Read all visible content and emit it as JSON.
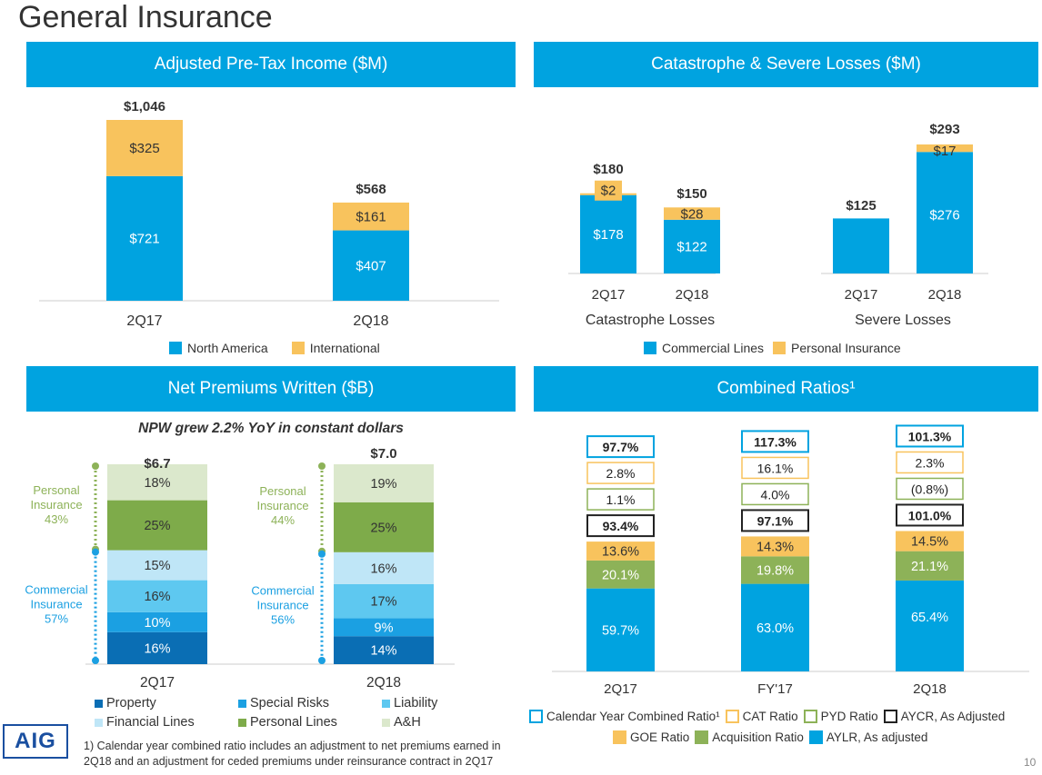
{
  "page": {
    "title": "General Insurance",
    "page_number": "10",
    "logo_text": "AIG",
    "footnote": "1) Calendar year combined ratio includes an adjustment to net premiums earned in 2Q18 and an adjustment for ceded premiums under reinsurance contract in 2Q17"
  },
  "colors": {
    "banner": "#00a3e0",
    "blue": "#00a3e0",
    "yellow": "#f8c35d",
    "green": "#8db258",
    "property": "#0a6eb4",
    "special_risks": "#1ba0e2",
    "liability": "#5ec8f0",
    "financial_lines": "#bfe6f7",
    "personal_lines": "#7eab4a",
    "ah": "#dbe8cc"
  },
  "chart_data": [
    {
      "id": "pretax",
      "type": "bar",
      "title": "Adjusted Pre-Tax Income ($M)",
      "categories": [
        "2Q17",
        "2Q18"
      ],
      "series": [
        {
          "name": "North America",
          "values": [
            721,
            407
          ],
          "labels": [
            "$721",
            "$407"
          ]
        },
        {
          "name": "International",
          "values": [
            325,
            161
          ],
          "labels": [
            "$325",
            "$161"
          ]
        }
      ],
      "totals": [
        "$1,046",
        "$568"
      ],
      "total_values": [
        1046,
        568
      ]
    },
    {
      "id": "cat",
      "type": "bar",
      "title": "Catastrophe & Severe Losses ($M)",
      "groups": [
        {
          "name": "Catastrophe Losses",
          "categories": [
            "2Q17",
            "2Q18"
          ]
        },
        {
          "name": "Severe Losses",
          "categories": [
            "2Q17",
            "2Q18"
          ]
        }
      ],
      "bars": [
        {
          "commercial": 178,
          "personal": 2,
          "commercial_label": "$178",
          "personal_label": "$2",
          "total": "$180"
        },
        {
          "commercial": 122,
          "personal": 28,
          "commercial_label": "$122",
          "personal_label": "$28",
          "total": "$150"
        },
        {
          "commercial": 125,
          "personal": 0,
          "commercial_label": "",
          "personal_label": "",
          "total": "$125"
        },
        {
          "commercial": 276,
          "personal": 17,
          "commercial_label": "$276",
          "personal_label": "$17",
          "total": "$293"
        }
      ],
      "legend": [
        "Commercial Lines",
        "Personal Insurance"
      ]
    },
    {
      "id": "npw",
      "type": "bar",
      "title": "Net Premiums Written  ($B)",
      "subtitle": "NPW grew 2.2% YoY in constant dollars",
      "categories": [
        "2Q17",
        "2Q18"
      ],
      "totals": [
        "$6.7",
        "$7.0"
      ],
      "total_values": [
        6.7,
        7.0
      ],
      "series": [
        {
          "name": "Property",
          "values": [
            16,
            14
          ]
        },
        {
          "name": "Special Risks",
          "values": [
            10,
            9
          ]
        },
        {
          "name": "Liability",
          "values": [
            16,
            17
          ]
        },
        {
          "name": "Financial Lines",
          "values": [
            15,
            16
          ]
        },
        {
          "name": "Personal Lines",
          "values": [
            25,
            25
          ]
        },
        {
          "name": "A&H",
          "values": [
            18,
            19
          ]
        }
      ],
      "segments": [
        {
          "label": "Personal\nInsurance",
          "values": [
            "43%",
            "44%"
          ]
        },
        {
          "label": "Commercial\nInsurance",
          "values": [
            "57%",
            "56%"
          ]
        }
      ]
    },
    {
      "id": "combined",
      "type": "bar",
      "title": "Combined Ratios¹",
      "categories": [
        "2Q17",
        "FY'17",
        "2Q18"
      ],
      "series": [
        {
          "name": "AYLR, As adjusted",
          "values": [
            59.7,
            63.0,
            65.4
          ],
          "labels": [
            "59.7%",
            "63.0%",
            "65.4%"
          ]
        },
        {
          "name": "Acquisition Ratio",
          "values": [
            20.1,
            19.8,
            21.1
          ],
          "labels": [
            "20.1%",
            "19.8%",
            "21.1%"
          ]
        },
        {
          "name": "GOE Ratio",
          "values": [
            13.6,
            14.3,
            14.5
          ],
          "labels": [
            "13.6%",
            "14.3%",
            "14.5%"
          ]
        }
      ],
      "aycr": [
        "93.4%",
        "97.1%",
        "101.0%"
      ],
      "pyd": [
        "1.1%",
        "4.0%",
        "(0.8%)"
      ],
      "cat_ratio": [
        "2.8%",
        "16.1%",
        "2.3%"
      ],
      "calendar_year": [
        "97.7%",
        "117.3%",
        "101.3%"
      ],
      "legend": [
        {
          "name": "Calendar Year Combined Ratio¹",
          "style": "outline",
          "color": "#00a3e0"
        },
        {
          "name": "CAT Ratio",
          "style": "outline",
          "color": "#f8c35d"
        },
        {
          "name": "PYD Ratio",
          "style": "outline",
          "color": "#8db258"
        },
        {
          "name": "AYCR, As Adjusted",
          "style": "outline",
          "color": "#222222"
        },
        {
          "name": "GOE Ratio",
          "style": "fill",
          "color": "#f8c35d"
        },
        {
          "name": "Acquisition Ratio",
          "style": "fill",
          "color": "#8db258"
        },
        {
          "name": "AYLR, As adjusted",
          "style": "fill",
          "color": "#00a3e0"
        }
      ]
    }
  ]
}
